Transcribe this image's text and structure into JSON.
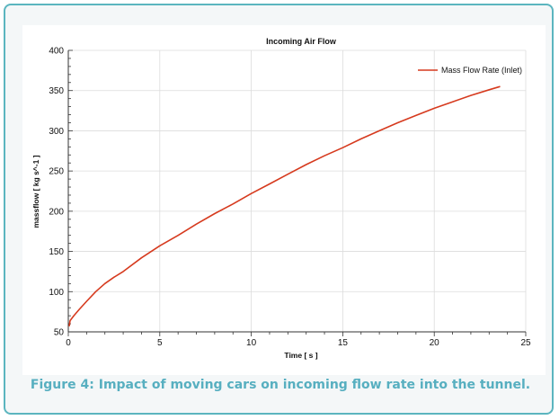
{
  "chart_data": {
    "type": "line",
    "title": "Incoming Air Flow",
    "xlabel": "Time [ s ]",
    "ylabel": "massflow [ kg s^-1 ]",
    "xlim": [
      0,
      25
    ],
    "ylim": [
      50,
      400
    ],
    "xticks": [
      0,
      5,
      10,
      15,
      20,
      25
    ],
    "yticks": [
      50,
      100,
      150,
      200,
      250,
      300,
      350,
      400
    ],
    "grid": true,
    "legend_position": "top-right",
    "series": [
      {
        "name": "Mass Flow Rate (Inlet)",
        "color": "#d63a1e",
        "x": [
          0.05,
          0.1,
          0.3,
          0.6,
          1,
          1.5,
          2,
          2.5,
          3,
          4,
          5,
          6,
          7,
          8,
          9,
          10,
          11,
          12,
          13,
          14,
          15,
          16,
          17,
          18,
          19,
          20,
          21,
          22,
          23,
          23.6
        ],
        "y": [
          57,
          64,
          70,
          78,
          88,
          100,
          110,
          118,
          125,
          142,
          157,
          170,
          184,
          197,
          209,
          222,
          234,
          246,
          258,
          269,
          279,
          290,
          300,
          310,
          319,
          328,
          336,
          344,
          351,
          355
        ]
      }
    ]
  },
  "caption": "Figure 4: Impact of moving cars on incoming flow rate into the tunnel.",
  "colors": {
    "frame_border": "#5bb5bf",
    "caption": "#57afc0",
    "background": "#f4f7f8"
  }
}
